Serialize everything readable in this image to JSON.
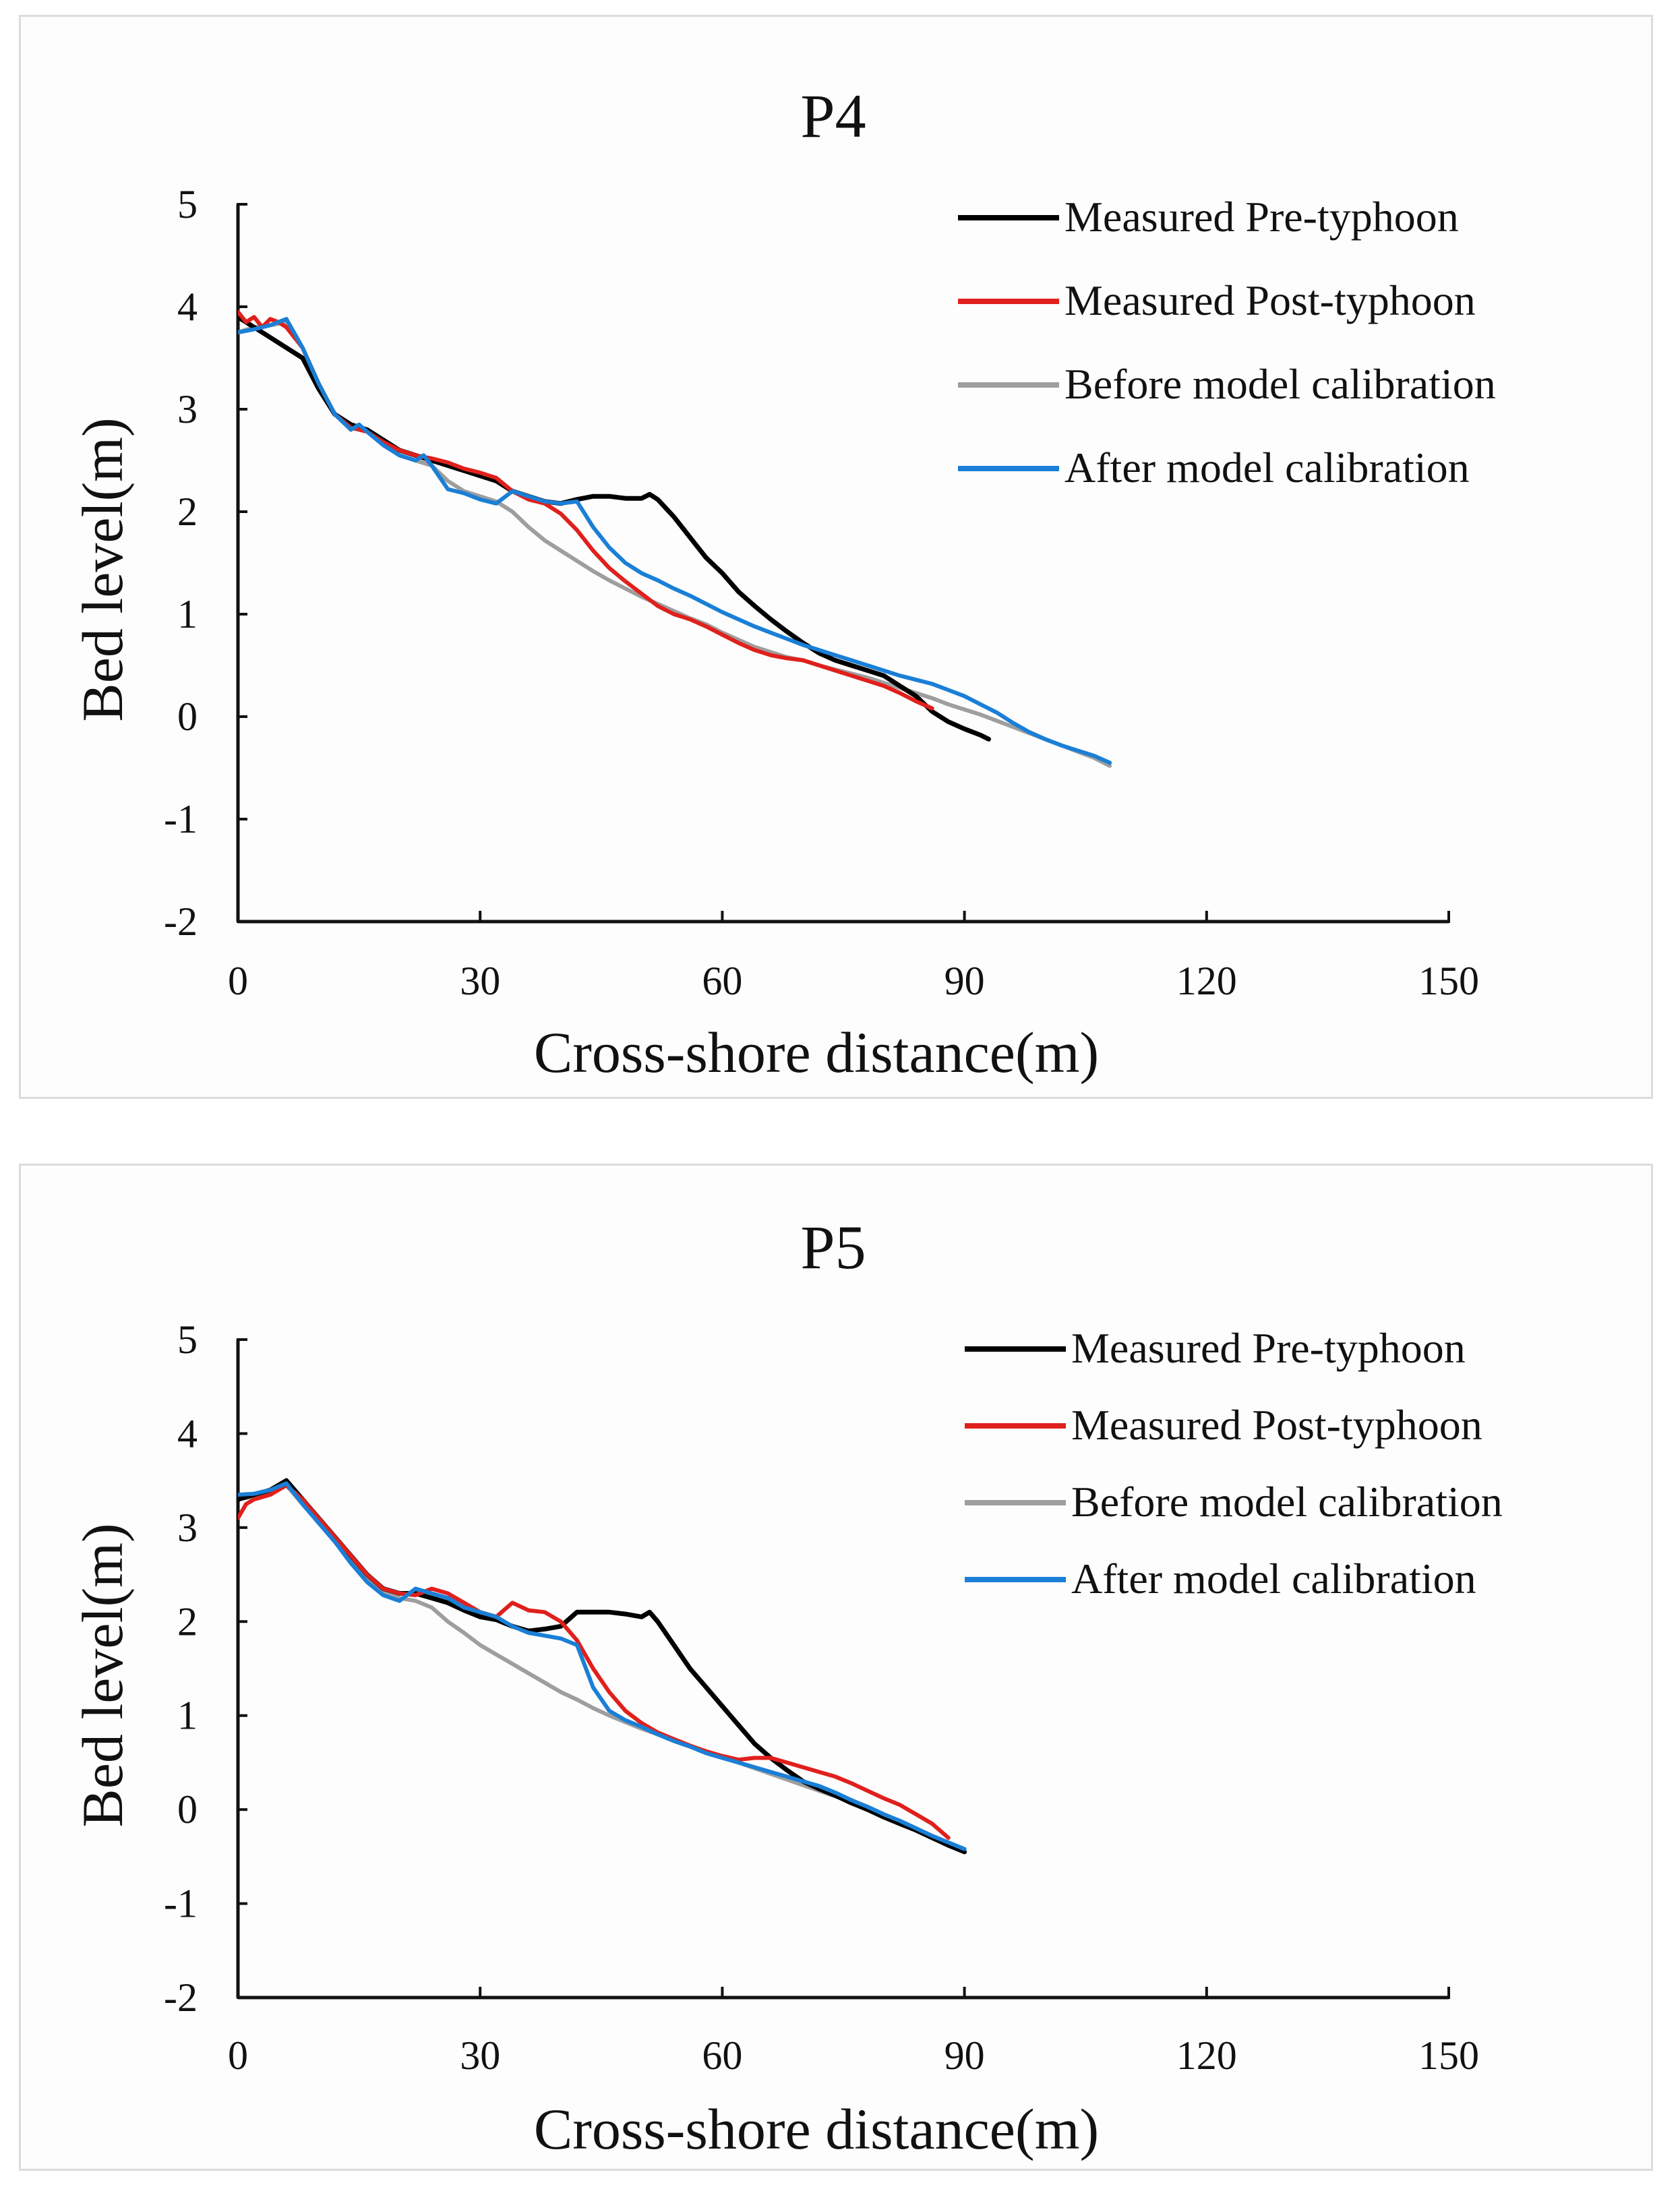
{
  "chart_data": [
    {
      "type": "line",
      "title": "P4",
      "xlabel": "Cross-shore  distance(m)",
      "ylabel": "Bed level(m)",
      "xlim": [
        0,
        150
      ],
      "ylim": [
        -2,
        5
      ],
      "xticks": [
        "0",
        "30",
        "60",
        "90",
        "120",
        "150"
      ],
      "yticks": [
        "-2",
        "-1",
        "0",
        "1",
        "2",
        "3",
        "4",
        "5"
      ],
      "legend_position": "top-right",
      "series": [
        {
          "name": "Measured Pre-typhoon",
          "color": "#000000",
          "x": [
            0,
            2,
            4,
            6,
            8,
            10,
            12,
            14,
            16,
            18,
            20,
            22,
            24,
            26,
            28,
            30,
            32,
            34,
            36,
            38,
            40,
            42,
            44,
            46,
            48,
            50,
            51,
            52,
            54,
            56,
            58,
            60,
            62,
            64,
            66,
            68,
            70,
            72,
            74,
            76,
            78,
            80,
            82,
            84,
            86,
            88,
            90,
            92,
            93
          ],
          "y": [
            3.9,
            3.8,
            3.7,
            3.6,
            3.5,
            3.2,
            2.95,
            2.85,
            2.8,
            2.7,
            2.6,
            2.55,
            2.5,
            2.45,
            2.4,
            2.35,
            2.3,
            2.2,
            2.15,
            2.1,
            2.08,
            2.12,
            2.15,
            2.15,
            2.13,
            2.13,
            2.17,
            2.12,
            1.95,
            1.75,
            1.55,
            1.4,
            1.22,
            1.08,
            0.95,
            0.83,
            0.72,
            0.62,
            0.55,
            0.5,
            0.45,
            0.4,
            0.3,
            0.2,
            0.05,
            -0.05,
            -0.12,
            -0.18,
            -0.22
          ]
        },
        {
          "name": "Measured Post-typhoon",
          "color": "#e0201c",
          "x": [
            0,
            1,
            2,
            3,
            4,
            5,
            6,
            8,
            10,
            12,
            14,
            16,
            18,
            20,
            22,
            24,
            26,
            28,
            30,
            32,
            34,
            36,
            38,
            40,
            42,
            44,
            46,
            48,
            50,
            52,
            54,
            56,
            58,
            60,
            62,
            64,
            66,
            68,
            70,
            72,
            74,
            76,
            78,
            80,
            82,
            84,
            86
          ],
          "y": [
            3.95,
            3.85,
            3.9,
            3.8,
            3.88,
            3.85,
            3.8,
            3.6,
            3.25,
            2.95,
            2.82,
            2.78,
            2.68,
            2.6,
            2.55,
            2.52,
            2.48,
            2.42,
            2.38,
            2.33,
            2.2,
            2.12,
            2.08,
            1.98,
            1.82,
            1.62,
            1.45,
            1.32,
            1.2,
            1.08,
            1.0,
            0.95,
            0.88,
            0.8,
            0.72,
            0.65,
            0.6,
            0.57,
            0.55,
            0.5,
            0.45,
            0.4,
            0.35,
            0.3,
            0.23,
            0.15,
            0.08
          ]
        },
        {
          "name": "Before model calibration",
          "color": "#9e9e9e",
          "x": [
            0,
            2,
            4,
            6,
            8,
            10,
            12,
            14,
            16,
            18,
            20,
            22,
            24,
            26,
            28,
            30,
            32,
            34,
            36,
            38,
            40,
            42,
            44,
            46,
            48,
            50,
            52,
            54,
            56,
            58,
            60,
            62,
            64,
            66,
            68,
            70,
            72,
            74,
            76,
            78,
            80,
            82,
            84,
            86,
            88,
            90,
            92,
            94,
            96,
            98,
            100,
            102,
            104,
            106,
            108
          ],
          "y": [
            3.75,
            3.8,
            3.82,
            3.85,
            3.6,
            3.25,
            2.95,
            2.85,
            2.8,
            2.65,
            2.55,
            2.5,
            2.45,
            2.3,
            2.2,
            2.15,
            2.1,
            2.0,
            1.85,
            1.72,
            1.62,
            1.52,
            1.42,
            1.33,
            1.25,
            1.17,
            1.1,
            1.03,
            0.96,
            0.9,
            0.82,
            0.75,
            0.68,
            0.63,
            0.58,
            0.55,
            0.5,
            0.46,
            0.42,
            0.38,
            0.33,
            0.28,
            0.23,
            0.18,
            0.12,
            0.07,
            0.02,
            -0.04,
            -0.1,
            -0.16,
            -0.22,
            -0.28,
            -0.34,
            -0.4,
            -0.48
          ]
        },
        {
          "name": "After model calibration",
          "color": "#1a7fd6",
          "x": [
            0,
            2,
            4,
            6,
            8,
            10,
            12,
            14,
            15,
            16,
            18,
            20,
            22,
            23,
            24,
            26,
            28,
            30,
            32,
            34,
            36,
            38,
            40,
            42,
            44,
            46,
            48,
            50,
            52,
            54,
            56,
            58,
            60,
            62,
            64,
            66,
            68,
            70,
            72,
            74,
            76,
            78,
            80,
            82,
            84,
            86,
            88,
            90,
            92,
            94,
            96,
            98,
            100,
            102,
            104,
            106,
            108
          ],
          "y": [
            3.75,
            3.78,
            3.82,
            3.88,
            3.6,
            3.25,
            2.95,
            2.8,
            2.85,
            2.78,
            2.65,
            2.55,
            2.5,
            2.55,
            2.45,
            2.22,
            2.18,
            2.12,
            2.08,
            2.2,
            2.15,
            2.1,
            2.08,
            2.1,
            1.85,
            1.65,
            1.5,
            1.4,
            1.33,
            1.25,
            1.18,
            1.1,
            1.02,
            0.95,
            0.88,
            0.82,
            0.76,
            0.7,
            0.65,
            0.6,
            0.55,
            0.5,
            0.45,
            0.4,
            0.36,
            0.32,
            0.26,
            0.2,
            0.12,
            0.04,
            -0.06,
            -0.15,
            -0.22,
            -0.28,
            -0.33,
            -0.38,
            -0.45
          ]
        }
      ]
    },
    {
      "type": "line",
      "title": "P5",
      "xlabel": "Cross-shore  distance(m)",
      "ylabel": "Bed level(m)",
      "xlim": [
        0,
        150
      ],
      "ylim": [
        -2,
        5
      ],
      "xticks": [
        "0",
        "30",
        "60",
        "90",
        "120",
        "150"
      ],
      "yticks": [
        "-2",
        "-1",
        "0",
        "1",
        "2",
        "3",
        "4",
        "5"
      ],
      "legend_position": "top-right",
      "series": [
        {
          "name": "Measured Pre-typhoon",
          "color": "#000000",
          "x": [
            0,
            2,
            4,
            6,
            8,
            10,
            12,
            14,
            16,
            18,
            20,
            22,
            24,
            26,
            28,
            30,
            32,
            34,
            36,
            38,
            40,
            42,
            44,
            46,
            48,
            50,
            51,
            52,
            54,
            56,
            58,
            60,
            62,
            64,
            66,
            68,
            70,
            72,
            74,
            76,
            78,
            80,
            82,
            84,
            86,
            88,
            90
          ],
          "y": [
            3.3,
            3.35,
            3.4,
            3.5,
            3.3,
            3.1,
            2.9,
            2.7,
            2.5,
            2.35,
            2.3,
            2.3,
            2.25,
            2.2,
            2.12,
            2.05,
            2.02,
            1.95,
            1.9,
            1.92,
            1.95,
            2.1,
            2.1,
            2.1,
            2.08,
            2.05,
            2.1,
            2.0,
            1.75,
            1.5,
            1.3,
            1.1,
            0.9,
            0.7,
            0.55,
            0.42,
            0.3,
            0.22,
            0.15,
            0.07,
            0.0,
            -0.08,
            -0.15,
            -0.22,
            -0.3,
            -0.38,
            -0.45
          ]
        },
        {
          "name": "Measured Post-typhoon",
          "color": "#e0201c",
          "x": [
            0,
            1,
            2,
            4,
            6,
            8,
            10,
            12,
            14,
            16,
            18,
            20,
            22,
            24,
            26,
            28,
            30,
            32,
            34,
            36,
            38,
            40,
            42,
            44,
            46,
            48,
            50,
            52,
            54,
            56,
            58,
            60,
            62,
            64,
            66,
            68,
            70,
            72,
            74,
            76,
            78,
            80,
            82,
            84,
            86,
            88
          ],
          "y": [
            3.1,
            3.25,
            3.3,
            3.35,
            3.45,
            3.3,
            3.1,
            2.9,
            2.7,
            2.5,
            2.35,
            2.3,
            2.28,
            2.35,
            2.3,
            2.2,
            2.1,
            2.05,
            2.2,
            2.12,
            2.1,
            2.0,
            1.8,
            1.5,
            1.25,
            1.05,
            0.92,
            0.82,
            0.75,
            0.68,
            0.62,
            0.57,
            0.53,
            0.55,
            0.55,
            0.5,
            0.45,
            0.4,
            0.35,
            0.28,
            0.2,
            0.12,
            0.05,
            -0.05,
            -0.15,
            -0.3
          ]
        },
        {
          "name": "Before model calibration",
          "color": "#9e9e9e",
          "x": [
            0,
            2,
            4,
            6,
            8,
            10,
            12,
            14,
            16,
            18,
            20,
            22,
            24,
            26,
            28,
            30,
            32,
            34,
            36,
            38,
            40,
            42,
            44,
            46,
            48,
            50,
            52,
            54,
            56,
            58,
            60,
            62,
            64,
            66,
            68,
            70,
            72,
            74,
            76,
            78,
            80,
            82,
            84,
            86,
            88,
            90
          ],
          "y": [
            3.3,
            3.33,
            3.38,
            3.45,
            3.25,
            3.05,
            2.85,
            2.65,
            2.45,
            2.3,
            2.25,
            2.22,
            2.15,
            2.0,
            1.88,
            1.75,
            1.65,
            1.55,
            1.45,
            1.35,
            1.25,
            1.17,
            1.08,
            1.0,
            0.93,
            0.86,
            0.8,
            0.73,
            0.67,
            0.62,
            0.56,
            0.5,
            0.44,
            0.38,
            0.32,
            0.26,
            0.2,
            0.14,
            0.08,
            0.02,
            -0.05,
            -0.12,
            -0.2,
            -0.28,
            -0.36,
            -0.45
          ]
        },
        {
          "name": "After model calibration",
          "color": "#1a7fd6",
          "x": [
            0,
            2,
            4,
            6,
            8,
            10,
            12,
            14,
            16,
            18,
            20,
            22,
            24,
            26,
            28,
            30,
            32,
            34,
            36,
            38,
            40,
            42,
            44,
            46,
            48,
            50,
            52,
            54,
            56,
            58,
            60,
            62,
            64,
            66,
            68,
            70,
            72,
            74,
            76,
            78,
            80,
            82,
            84,
            86,
            88,
            90
          ],
          "y": [
            3.35,
            3.36,
            3.4,
            3.47,
            3.25,
            3.05,
            2.85,
            2.62,
            2.42,
            2.28,
            2.22,
            2.35,
            2.3,
            2.25,
            2.15,
            2.1,
            2.05,
            1.95,
            1.88,
            1.85,
            1.82,
            1.75,
            1.3,
            1.05,
            0.95,
            0.88,
            0.8,
            0.73,
            0.67,
            0.6,
            0.55,
            0.5,
            0.45,
            0.4,
            0.35,
            0.3,
            0.25,
            0.18,
            0.1,
            0.03,
            -0.05,
            -0.12,
            -0.2,
            -0.28,
            -0.35,
            -0.42
          ]
        }
      ]
    }
  ]
}
